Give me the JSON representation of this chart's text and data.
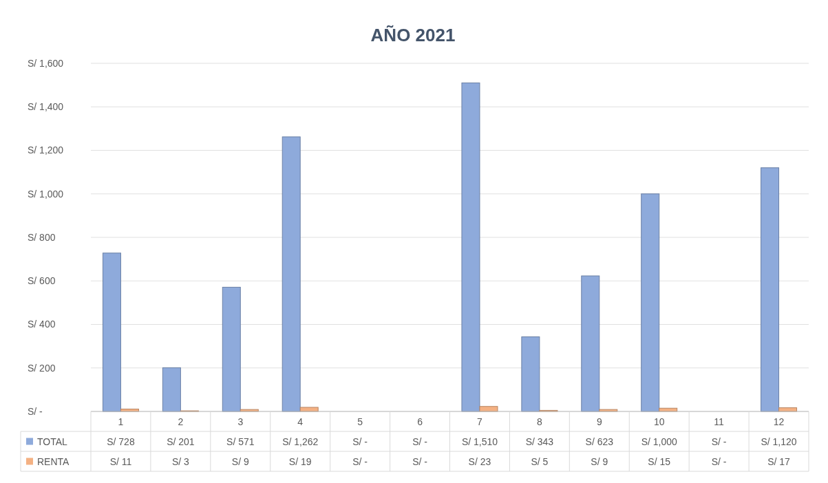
{
  "chart_data": {
    "type": "bar",
    "title": "AÑO 2021",
    "categories": [
      "1",
      "2",
      "3",
      "4",
      "5",
      "6",
      "7",
      "8",
      "9",
      "10",
      "11",
      "12"
    ],
    "series": [
      {
        "name": "TOTAL",
        "color": "#8eaadb",
        "values": [
          728,
          201,
          571,
          1262,
          0,
          0,
          1510,
          343,
          623,
          1000,
          0,
          1120
        ],
        "value_labels": [
          "S/ 728",
          "S/ 201",
          "S/ 571",
          "S/ 1,262",
          "S/ -",
          "S/ -",
          "S/ 1,510",
          "S/ 343",
          "S/ 623",
          "S/ 1,000",
          "S/ -",
          "S/ 1,120"
        ]
      },
      {
        "name": "RENTA",
        "color": "#f4b183",
        "values": [
          11,
          3,
          9,
          19,
          0,
          0,
          23,
          5,
          9,
          15,
          0,
          17
        ],
        "value_labels": [
          "S/ 11",
          "S/ 3",
          "S/ 9",
          "S/ 19",
          "S/ -",
          "S/ -",
          "S/ 23",
          "S/ 5",
          "S/ 9",
          "S/ 15",
          "S/ -",
          "S/ 17"
        ]
      }
    ],
    "ylim": [
      0,
      1600
    ],
    "yticks": [
      {
        "value": 0,
        "label": "S/ -"
      },
      {
        "value": 200,
        "label": "S/ 200"
      },
      {
        "value": 400,
        "label": "S/ 400"
      },
      {
        "value": 600,
        "label": "S/ 600"
      },
      {
        "value": 800,
        "label": "S/ 800"
      },
      {
        "value": 1000,
        "label": "S/ 1,000"
      },
      {
        "value": 1200,
        "label": "S/ 1,200"
      },
      {
        "value": 1400,
        "label": "S/ 1,400"
      },
      {
        "value": 1600,
        "label": "S/ 1,600"
      }
    ],
    "grid": "y",
    "legend": "bottom"
  }
}
